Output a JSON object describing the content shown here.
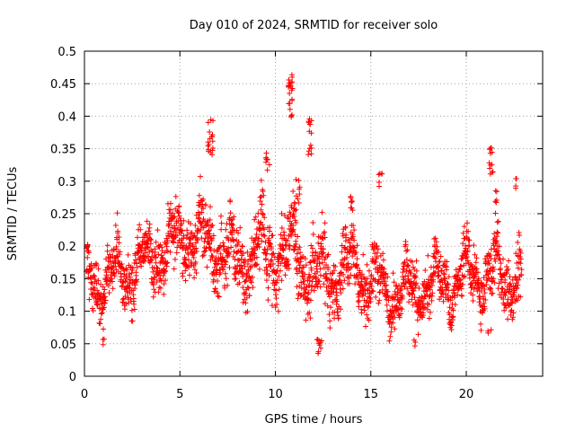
{
  "chart_data": {
    "type": "scatter",
    "title": "Day 010 of 2024, SRMTID for receiver solo",
    "xlabel": "GPS time / hours",
    "ylabel": "SRMTID / TECUs",
    "xlim": [
      0,
      24
    ],
    "ylim": [
      0,
      0.5
    ],
    "xticks": [
      0,
      5,
      10,
      15,
      20
    ],
    "xtick_labels": [
      "0",
      "5",
      "10",
      "15",
      "20"
    ],
    "yticks": [
      0,
      0.05,
      0.1,
      0.15,
      0.2,
      0.25,
      0.3,
      0.35,
      0.4,
      0.45,
      0.5
    ],
    "ytick_labels": [
      "0",
      "0.05",
      "0.1",
      "0.15",
      "0.2",
      "0.25",
      "0.3",
      "0.35",
      "0.4",
      "0.45",
      "0.5"
    ],
    "grid": true,
    "marker": "+",
    "color": "#ff0000",
    "data_range": [
      0,
      22.9
    ],
    "baseline": [
      [
        0,
        0.14
      ],
      [
        2,
        0.16
      ],
      [
        3,
        0.17
      ],
      [
        4,
        0.19
      ],
      [
        5,
        0.21
      ],
      [
        6,
        0.21
      ],
      [
        7,
        0.2
      ],
      [
        8,
        0.18
      ],
      [
        9,
        0.19
      ],
      [
        10,
        0.19
      ],
      [
        11,
        0.19
      ],
      [
        12,
        0.16
      ],
      [
        13,
        0.15
      ],
      [
        14,
        0.17
      ],
      [
        15,
        0.14
      ],
      [
        16,
        0.13
      ],
      [
        17,
        0.13
      ],
      [
        18,
        0.14
      ],
      [
        19,
        0.14
      ],
      [
        20,
        0.16
      ],
      [
        21,
        0.16
      ],
      [
        22,
        0.15
      ],
      [
        23,
        0.15
      ]
    ],
    "spread": [
      [
        0,
        0.035
      ],
      [
        4,
        0.045
      ],
      [
        6,
        0.05
      ],
      [
        10,
        0.05
      ],
      [
        12,
        0.05
      ],
      [
        15,
        0.04
      ],
      [
        18,
        0.035
      ],
      [
        20,
        0.04
      ],
      [
        23,
        0.04
      ]
    ],
    "clusters": [
      {
        "x": 6.6,
        "y": 0.37,
        "dx": 0.15,
        "dy": 0.03,
        "n": 18
      },
      {
        "x": 9.6,
        "y": 0.33,
        "dx": 0.12,
        "dy": 0.015,
        "n": 8
      },
      {
        "x": 10.8,
        "y": 0.43,
        "dx": 0.12,
        "dy": 0.035,
        "n": 22
      },
      {
        "x": 11.1,
        "y": 0.28,
        "dx": 0.2,
        "dy": 0.03,
        "n": 14
      },
      {
        "x": 11.8,
        "y": 0.37,
        "dx": 0.1,
        "dy": 0.03,
        "n": 14
      },
      {
        "x": 12.3,
        "y": 0.05,
        "dx": 0.15,
        "dy": 0.015,
        "n": 10
      },
      {
        "x": 14.0,
        "y": 0.26,
        "dx": 0.1,
        "dy": 0.02,
        "n": 8
      },
      {
        "x": 15.5,
        "y": 0.3,
        "dx": 0.1,
        "dy": 0.02,
        "n": 6
      },
      {
        "x": 21.3,
        "y": 0.33,
        "dx": 0.1,
        "dy": 0.025,
        "n": 12
      },
      {
        "x": 21.5,
        "y": 0.27,
        "dx": 0.1,
        "dy": 0.02,
        "n": 6
      },
      {
        "x": 22.6,
        "y": 0.29,
        "dx": 0.05,
        "dy": 0.015,
        "n": 4
      },
      {
        "x": 1.0,
        "y": 0.06,
        "dx": 0.1,
        "dy": 0.015,
        "n": 4
      },
      {
        "x": 17.3,
        "y": 0.055,
        "dx": 0.2,
        "dy": 0.01,
        "n": 4
      },
      {
        "x": 21.2,
        "y": 0.065,
        "dx": 0.1,
        "dy": 0.008,
        "n": 3
      }
    ],
    "points_per_hour": 95,
    "seed": 10
  }
}
